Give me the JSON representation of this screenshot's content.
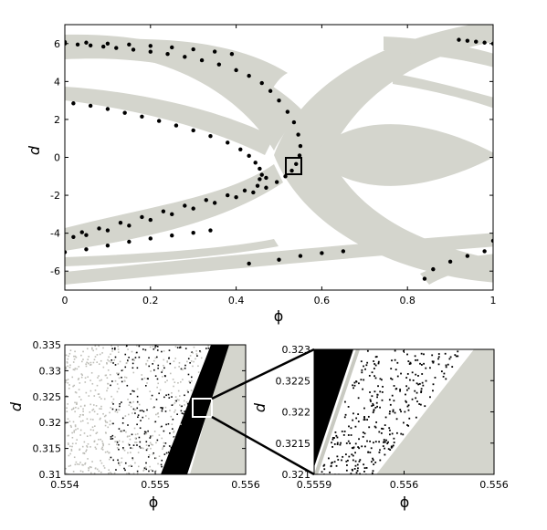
{
  "colors": {
    "band": "#d4d5cd",
    "dot": "#000000",
    "lightdot": "#bdbdb7",
    "frame": "#000000"
  },
  "chart_data": [
    {
      "type": "scatter",
      "title": "",
      "xlabel": "ϕ",
      "ylabel": "d",
      "xlim": [
        0,
        1
      ],
      "ylim": [
        -7,
        7
      ],
      "xticks": [
        "0",
        "0.2",
        "0.4",
        "0.6",
        "0.8",
        "1"
      ],
      "yticks": [
        "-6",
        "-4",
        "-2",
        "0",
        "2",
        "4",
        "6"
      ],
      "grid": false,
      "zoom_box": {
        "x": [
          0.51,
          0.555
        ],
        "y": [
          -1.1,
          -0.2
        ]
      },
      "series": [
        {
          "points": [
            [
              0.0,
              6.0
            ],
            [
              0.03,
              5.95
            ],
            [
              0.06,
              5.9
            ],
            [
              0.09,
              5.84
            ],
            [
              0.12,
              5.77
            ],
            [
              0.16,
              5.68
            ],
            [
              0.2,
              5.57
            ],
            [
              0.24,
              5.45
            ],
            [
              0.28,
              5.3
            ],
            [
              0.32,
              5.12
            ],
            [
              0.36,
              4.9
            ],
            [
              0.4,
              4.6
            ],
            [
              0.43,
              4.3
            ],
            [
              0.46,
              3.92
            ],
            [
              0.48,
              3.5
            ],
            [
              0.5,
              3.0
            ],
            [
              0.52,
              2.4
            ],
            [
              0.535,
              1.85
            ],
            [
              0.545,
              1.2
            ],
            [
              0.55,
              0.6
            ],
            [
              0.548,
              0.1
            ],
            [
              0.54,
              -0.35
            ],
            [
              0.53,
              -0.7
            ],
            [
              0.515,
              -1.0
            ],
            [
              0.495,
              -1.3
            ],
            [
              0.47,
              -1.6
            ],
            [
              0.44,
              -1.85
            ],
            [
              0.4,
              -2.1
            ],
            [
              0.35,
              -2.4
            ],
            [
              0.3,
              -2.7
            ],
            [
              0.25,
              -3.0
            ],
            [
              0.2,
              -3.3
            ],
            [
              0.15,
              -3.6
            ],
            [
              0.1,
              -3.85
            ],
            [
              0.05,
              -4.1
            ],
            [
              0.02,
              -4.2
            ],
            [
              0.0,
              6.08
            ],
            [
              0.05,
              6.05
            ],
            [
              0.1,
              6.0
            ],
            [
              0.15,
              5.95
            ],
            [
              0.2,
              5.88
            ],
            [
              0.25,
              5.8
            ],
            [
              0.3,
              5.7
            ],
            [
              0.35,
              5.58
            ],
            [
              0.39,
              5.45
            ],
            [
              0.02,
              2.85
            ],
            [
              0.06,
              2.72
            ],
            [
              0.1,
              2.55
            ],
            [
              0.14,
              2.35
            ],
            [
              0.18,
              2.15
            ],
            [
              0.22,
              1.92
            ],
            [
              0.26,
              1.68
            ],
            [
              0.3,
              1.42
            ],
            [
              0.34,
              1.12
            ],
            [
              0.38,
              0.78
            ],
            [
              0.41,
              0.42
            ],
            [
              0.43,
              0.08
            ],
            [
              0.445,
              -0.28
            ],
            [
              0.455,
              -0.6
            ],
            [
              0.46,
              -0.92
            ],
            [
              0.455,
              -1.15
            ],
            [
              0.47,
              -1.08
            ],
            [
              0.45,
              -1.5
            ],
            [
              0.42,
              -1.75
            ],
            [
              0.38,
              -2.0
            ],
            [
              0.33,
              -2.25
            ],
            [
              0.28,
              -2.55
            ],
            [
              0.23,
              -2.85
            ],
            [
              0.18,
              -3.15
            ],
            [
              0.13,
              -3.45
            ],
            [
              0.08,
              -3.75
            ],
            [
              0.04,
              -3.95
            ],
            [
              0.0,
              -5.0
            ],
            [
              0.05,
              -4.85
            ],
            [
              0.1,
              -4.65
            ],
            [
              0.15,
              -4.45
            ],
            [
              0.2,
              -4.28
            ],
            [
              0.25,
              -4.12
            ],
            [
              0.3,
              -3.98
            ],
            [
              0.34,
              -3.85
            ],
            [
              0.43,
              -5.6
            ],
            [
              0.5,
              -5.4
            ],
            [
              0.55,
              -5.2
            ],
            [
              0.6,
              -5.05
            ],
            [
              0.65,
              -4.95
            ],
            [
              0.92,
              6.2
            ],
            [
              0.94,
              6.15
            ],
            [
              0.96,
              6.1
            ],
            [
              0.98,
              6.05
            ],
            [
              1.0,
              6.0
            ],
            [
              0.84,
              -6.4
            ],
            [
              0.86,
              -5.9
            ],
            [
              0.9,
              -5.5
            ],
            [
              0.94,
              -5.2
            ],
            [
              0.98,
              -4.95
            ],
            [
              1.0,
              -4.4
            ]
          ]
        }
      ]
    },
    {
      "type": "scatter",
      "title": "",
      "xlabel": "ϕ",
      "ylabel": "d",
      "xlim": [
        0.554,
        0.5565
      ],
      "ylim": [
        0.31,
        0.335
      ],
      "xticks": [
        "0.554",
        "0.555",
        "0.556"
      ],
      "yticks": [
        "0.31",
        "0.315",
        "0.32",
        "0.325",
        "0.33",
        "0.335"
      ],
      "grid": false,
      "zoom_box": {
        "x": [
          0.5558,
          0.5561
        ],
        "y": [
          0.3215,
          0.3233
        ]
      }
    },
    {
      "type": "scatter",
      "title": "",
      "xlabel": "ϕ",
      "ylabel": "d",
      "xlim": [
        0.55585,
        0.55605
      ],
      "ylim": [
        0.321,
        0.323
      ],
      "xticks": [
        "0.5559",
        "0.556",
        "0.556"
      ],
      "yticks": [
        "0.321",
        "0.3215",
        "0.322",
        "0.3225",
        "0.323"
      ],
      "grid": false
    }
  ]
}
